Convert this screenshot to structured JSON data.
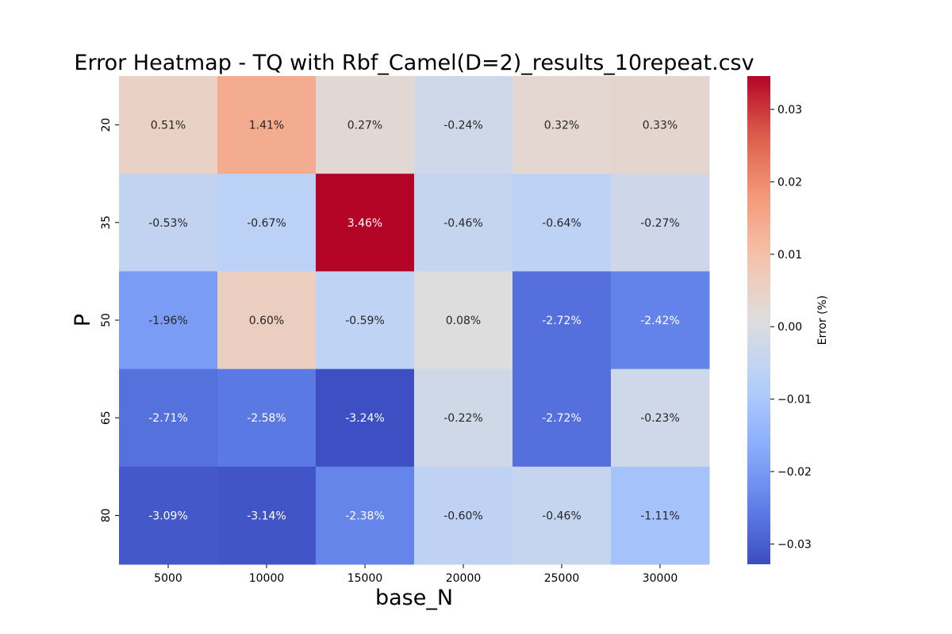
{
  "chart_data": {
    "type": "heatmap",
    "title": "Error Heatmap - TQ with Rbf_Camel(D=2)_results_10repeat.csv",
    "xlabel": "base_N",
    "ylabel": "P",
    "x_categories": [
      "5000",
      "10000",
      "15000",
      "20000",
      "25000",
      "30000"
    ],
    "y_categories": [
      "20",
      "35",
      "50",
      "65",
      "80"
    ],
    "values": [
      [
        0.0051,
        0.0141,
        0.0027,
        -0.0024,
        0.0032,
        0.0033
      ],
      [
        -0.0053,
        -0.0067,
        0.0346,
        -0.0046,
        -0.0064,
        -0.0027
      ],
      [
        -0.0196,
        0.006,
        -0.0059,
        0.0008,
        -0.0272,
        -0.0242
      ],
      [
        -0.0271,
        -0.0258,
        -0.0324,
        -0.0022,
        -0.0272,
        -0.0023
      ],
      [
        -0.0309,
        -0.0314,
        -0.0238,
        -0.006,
        -0.0046,
        -0.0111
      ]
    ],
    "cell_labels": [
      [
        "0.51%",
        "1.41%",
        "0.27%",
        "-0.24%",
        "0.32%",
        "0.33%"
      ],
      [
        "-0.53%",
        "-0.67%",
        "3.46%",
        "-0.46%",
        "-0.64%",
        "-0.27%"
      ],
      [
        "-1.96%",
        "0.60%",
        "-0.59%",
        "0.08%",
        "-2.72%",
        "-2.42%"
      ],
      [
        "-2.71%",
        "-2.58%",
        "-3.24%",
        "-0.22%",
        "-2.72%",
        "-0.23%"
      ],
      [
        "-3.09%",
        "-3.14%",
        "-2.38%",
        "-0.60%",
        "-0.46%",
        "-1.11%"
      ]
    ],
    "colormap": "coolwarm",
    "vmin": -0.0328,
    "vmax": 0.0346,
    "colorbar": {
      "label": "Error (%)",
      "ticks": [
        0.03,
        0.02,
        0.01,
        0.0,
        -0.01,
        -0.02,
        -0.03
      ],
      "tick_labels": [
        "0.03",
        "0.02",
        "0.01",
        "0.00",
        "−0.01",
        "−0.02",
        "−0.03"
      ]
    }
  }
}
